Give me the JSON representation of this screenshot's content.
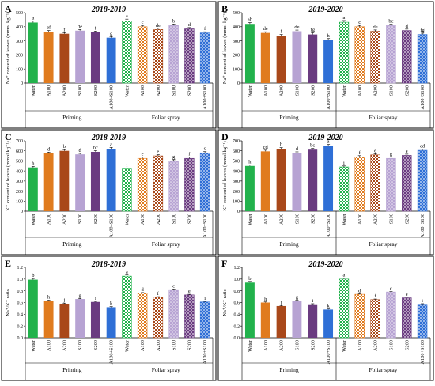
{
  "figure": {
    "group_labels": [
      "Priming",
      "Foliar spray"
    ]
  },
  "colors": {
    "water": "#22b24c",
    "a100": "#e07b1e",
    "a200": "#a9481a",
    "s100": "#b7a3d3",
    "s200": "#6a3b80",
    "a100s100": "#2f6fd6"
  },
  "chart_data": [
    {
      "type": "bar",
      "panel": "A",
      "title": "2018-2019",
      "ylabel": "Na⁺ content of leaves (mmol kg⁻¹)",
      "ylim": [
        0,
        500
      ],
      "yticks": [
        0,
        100,
        200,
        300,
        400,
        500
      ],
      "categories": [
        "Water",
        "A100",
        "A200",
        "S100",
        "S200",
        "A100+S100",
        "Water",
        "A100",
        "A200",
        "S100",
        "S200",
        "A100+S100"
      ],
      "values": [
        430,
        365,
        350,
        372,
        360,
        322,
        442,
        400,
        380,
        410,
        385,
        356
      ],
      "errors": [
        10,
        8,
        8,
        8,
        9,
        8,
        12,
        9,
        9,
        9,
        9,
        8
      ],
      "letters": [
        "a",
        "ef",
        "f",
        "de",
        "f",
        "g",
        "a",
        "c",
        "de",
        "b",
        "d",
        "f"
      ]
    },
    {
      "type": "bar",
      "panel": "B",
      "title": "2019-2020",
      "ylabel": "Na⁺ content of leaves (mmol kg⁻¹)",
      "ylim": [
        0,
        500
      ],
      "yticks": [
        0,
        100,
        200,
        300,
        400,
        500
      ],
      "categories": [
        "Water",
        "A100",
        "A200",
        "S100",
        "S200",
        "A100+S100",
        "Water",
        "A100",
        "A200",
        "S100",
        "S200",
        "A100+S100"
      ],
      "values": [
        420,
        356,
        337,
        368,
        345,
        308,
        432,
        400,
        368,
        410,
        373,
        345
      ],
      "errors": [
        10,
        8,
        8,
        8,
        12,
        8,
        12,
        9,
        9,
        9,
        10,
        9
      ],
      "letters": [
        "ab",
        "de",
        "f",
        "de",
        "fg",
        "h",
        "a",
        "c",
        "de",
        "bc",
        "d",
        "fg"
      ]
    },
    {
      "type": "bar",
      "panel": "C",
      "title": "2018-2019",
      "ylabel": "K⁺ content of leaves (mmol kg⁻¹)",
      "ylim": [
        0,
        700
      ],
      "yticks": [
        0,
        100,
        200,
        300,
        400,
        500,
        600,
        700
      ],
      "categories": [
        "Water",
        "A100",
        "A200",
        "S100",
        "S200",
        "A100+S100",
        "Water",
        "A100",
        "A200",
        "S100",
        "S200",
        "A100+S100"
      ],
      "values": [
        435,
        575,
        600,
        565,
        590,
        620,
        420,
        525,
        550,
        500,
        525,
        580
      ],
      "errors": [
        10,
        12,
        12,
        10,
        12,
        14,
        10,
        12,
        12,
        12,
        12,
        12
      ],
      "letters": [
        "h",
        "d",
        "b",
        "d",
        "bc",
        "a",
        "i",
        "e",
        "e",
        "g",
        "f",
        "c"
      ]
    },
    {
      "type": "bar",
      "panel": "D",
      "title": "2019-2020",
      "ylabel": "K⁺ content of leaves (mmol kg⁻¹)",
      "ylim": [
        0,
        700
      ],
      "yticks": [
        0,
        100,
        200,
        300,
        400,
        500,
        600,
        700
      ],
      "categories": [
        "Water",
        "A100",
        "A200",
        "S100",
        "S200",
        "A100+S100",
        "Water",
        "A100",
        "A200",
        "S100",
        "S200",
        "A100+S100"
      ],
      "values": [
        450,
        595,
        620,
        580,
        612,
        650,
        440,
        540,
        560,
        525,
        555,
        605
      ],
      "errors": [
        10,
        12,
        12,
        10,
        12,
        14,
        10,
        12,
        12,
        12,
        12,
        12
      ],
      "letters": [
        "h",
        "cd",
        "b",
        "d",
        "bc",
        "a",
        "i",
        "f",
        "e",
        "g",
        "e",
        "cd"
      ]
    },
    {
      "type": "bar",
      "panel": "E",
      "title": "2018-2019",
      "ylabel": "Na⁺/K⁺ ratio",
      "ylim": [
        0,
        1.2
      ],
      "yticks": [
        0,
        0.2,
        0.4,
        0.6,
        0.8,
        1.0,
        1.2
      ],
      "categories": [
        "Water",
        "A100",
        "A200",
        "S100",
        "S200",
        "A100+S100",
        "Water",
        "A100",
        "A200",
        "S100",
        "S200",
        "A100+S100"
      ],
      "values": [
        0.99,
        0.63,
        0.58,
        0.66,
        0.61,
        0.52,
        1.05,
        0.76,
        0.69,
        0.82,
        0.73,
        0.61
      ],
      "errors": [
        0.02,
        0.01,
        0.01,
        0.01,
        0.01,
        0.01,
        0.02,
        0.01,
        0.01,
        0.01,
        0.01,
        0.01
      ],
      "letters": [
        "b",
        "h",
        "j",
        "g",
        "i",
        "k",
        "a",
        "d",
        "f",
        "c",
        "e",
        "i"
      ]
    },
    {
      "type": "bar",
      "panel": "F",
      "title": "2019-2020",
      "ylabel": "Na⁺/K⁺ ratio",
      "ylim": [
        0,
        1.2
      ],
      "yticks": [
        0,
        0.2,
        0.4,
        0.6,
        0.8,
        1.0,
        1.2
      ],
      "categories": [
        "Water",
        "A100",
        "A200",
        "S100",
        "S200",
        "A100+S100",
        "Water",
        "A100",
        "A200",
        "S100",
        "S200",
        "A100+S100"
      ],
      "values": [
        0.94,
        0.6,
        0.54,
        0.63,
        0.57,
        0.48,
        1.0,
        0.74,
        0.65,
        0.78,
        0.68,
        0.57
      ],
      "errors": [
        0.02,
        0.01,
        0.01,
        0.01,
        0.01,
        0.01,
        0.02,
        0.01,
        0.01,
        0.01,
        0.01,
        0.01
      ],
      "letters": [
        "b",
        "h",
        "j",
        "g",
        "i",
        "k",
        "a",
        "d",
        "f",
        "c",
        "e",
        "i"
      ]
    }
  ]
}
